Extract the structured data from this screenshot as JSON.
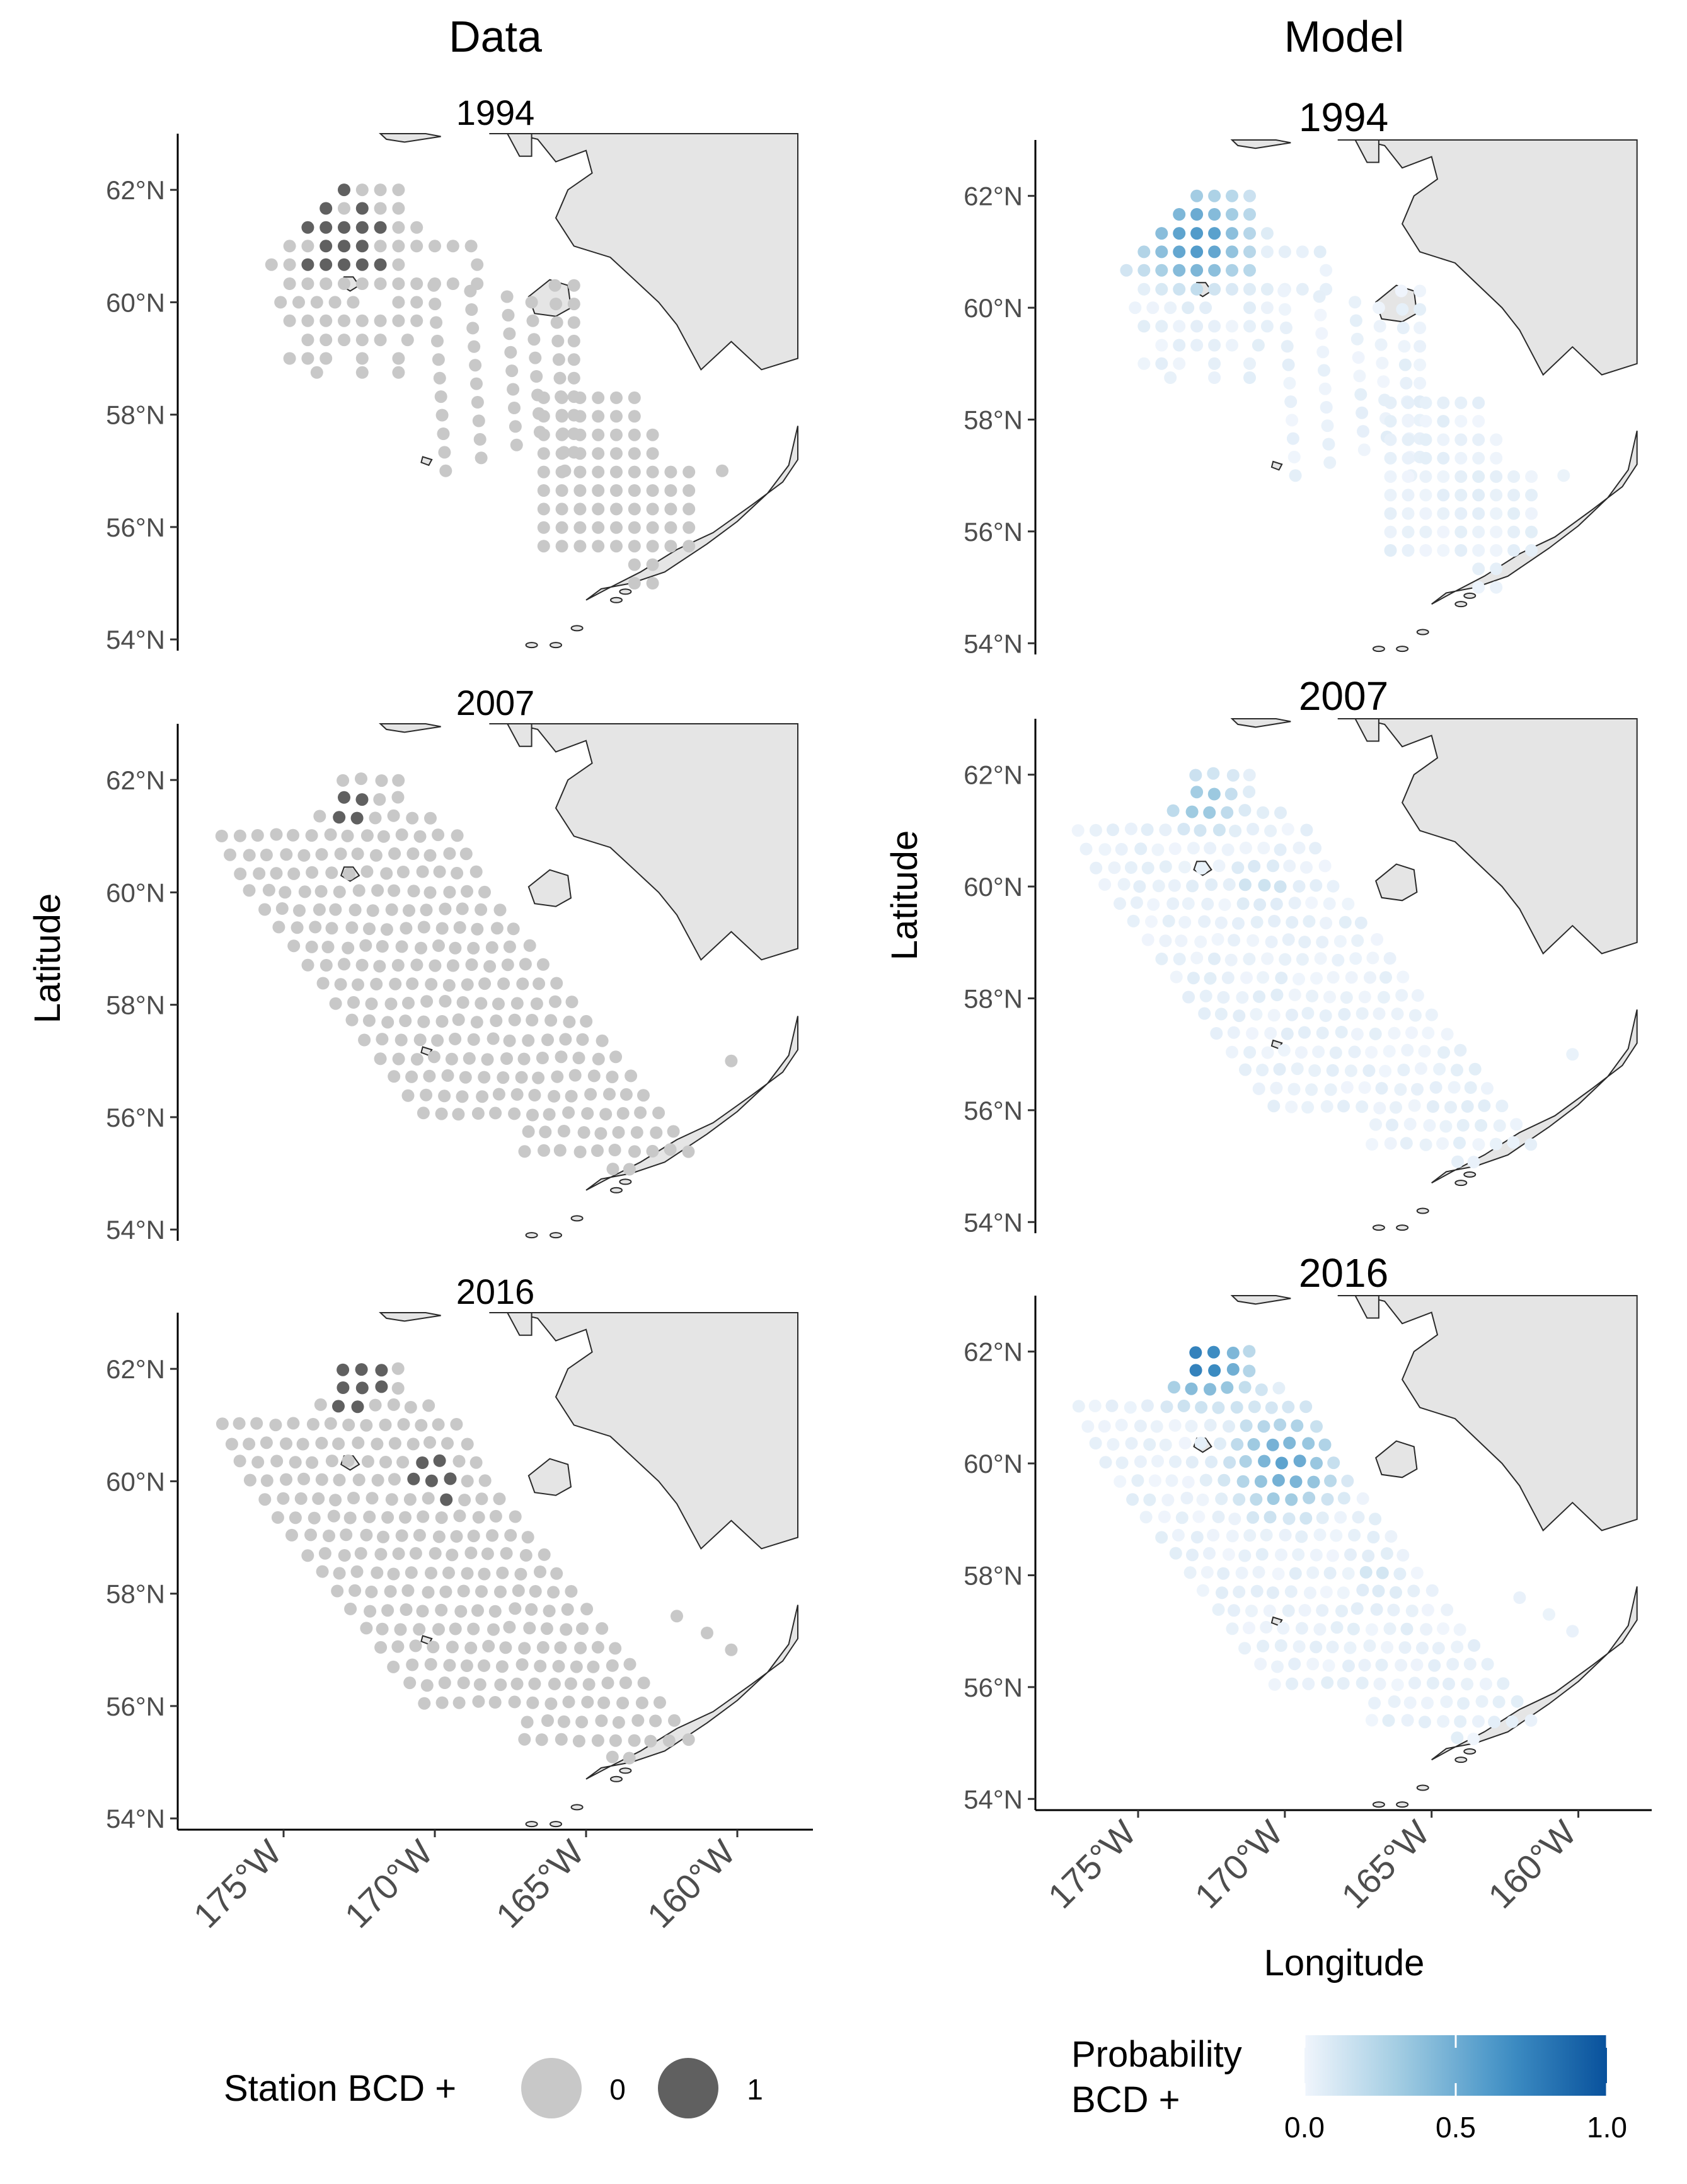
{
  "columns": {
    "data_title": "Data",
    "model_title": "Model"
  },
  "axes": {
    "xlabel": "Longitude",
    "ylabel": "Latitude"
  },
  "chart_data": [
    {
      "type": "scatter",
      "panel": "Data",
      "xlabel": "",
      "ylabel": "Latitude",
      "xlim": [
        -178.5,
        -157.5
      ],
      "ylim": [
        53.8,
        63.0
      ],
      "yticks": [
        62,
        60,
        58,
        56,
        54
      ],
      "ytick_labels": [
        "62°N",
        "60°N",
        "58°N",
        "56°N",
        "54°N"
      ],
      "facets": [
        {
          "title": "1994",
          "stations": "sparse-transects",
          "positive_zone": "north"
        },
        {
          "title": "2007",
          "stations": "grid",
          "positive_zone": "few"
        },
        {
          "title": "2016",
          "stations": "grid",
          "positive_zone": "northwest"
        }
      ],
      "legend": {
        "title": "Station BCD +",
        "entries": [
          "0",
          "1"
        ],
        "colors": [
          "#c8c8c8",
          "#606060"
        ],
        "position": "bottom"
      }
    },
    {
      "type": "scatter",
      "panel": "Model",
      "xlabel": "Longitude",
      "ylabel": "Latitude",
      "xlim": [
        -178.5,
        -157.5
      ],
      "ylim": [
        53.8,
        63.0
      ],
      "xticks": [
        -175,
        -170,
        -165,
        -160
      ],
      "xtick_labels": [
        "175°W",
        "170°W",
        "165°W",
        "160°W"
      ],
      "yticks": [
        62,
        60,
        58,
        56,
        54
      ],
      "ytick_labels": [
        "62°N",
        "60°N",
        "58°N",
        "56°N",
        "54°N"
      ],
      "facets": [
        {
          "title": "1994"
        },
        {
          "title": "2007"
        },
        {
          "title": "2016"
        }
      ],
      "legend": {
        "title_line1": "Probability",
        "title_line2": "BCD +",
        "ticks": [
          "0.0",
          "0.5",
          "1.0"
        ],
        "range": [
          0,
          1
        ],
        "colors": [
          "#f0f5fc",
          "#9ecae1",
          "#4292c6",
          "#08519c"
        ],
        "position": "bottom"
      }
    }
  ]
}
